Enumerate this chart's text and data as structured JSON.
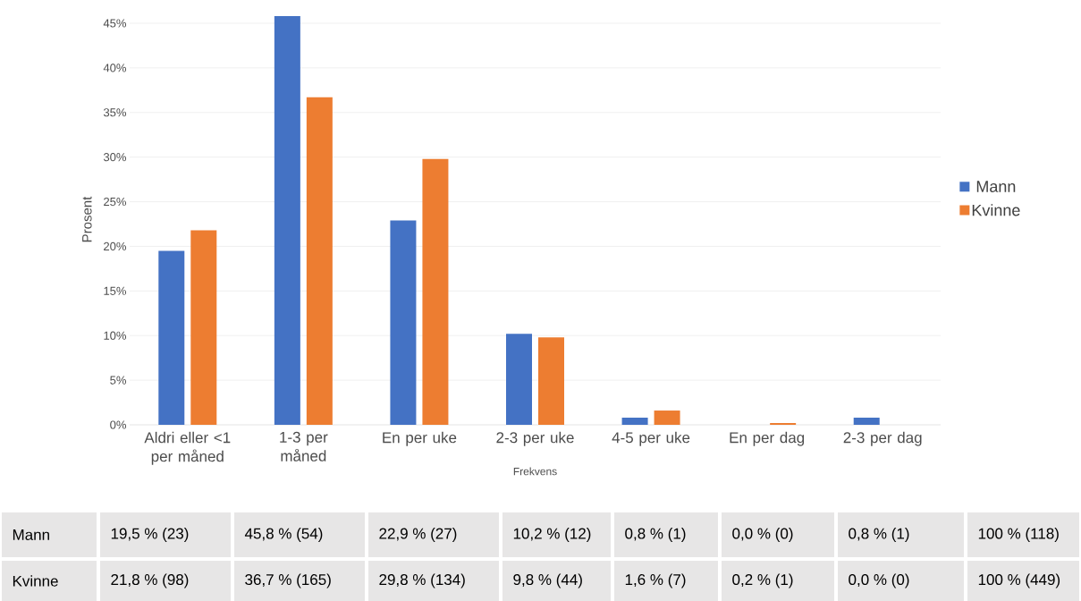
{
  "chart_data": {
    "type": "bar",
    "xlabel": "Frekvens",
    "ylabel": "Prosent",
    "categories": [
      "Aldri eller <1 per måned",
      "1-3 per måned",
      "En per uke",
      "2-3 per uke",
      "4-5 per uke",
      "En per dag",
      "2-3 per dag"
    ],
    "series": [
      {
        "name": "Mann",
        "color": "#4472c4",
        "values": [
          19.5,
          45.8,
          22.9,
          10.2,
          0.8,
          0.0,
          0.8
        ],
        "value_labels": [
          "19,5 % (23)",
          "45,8 % (54)",
          "22,9 % (27)",
          "10,2 % (12)",
          "0,8 % (1)",
          "0,0 % (0)",
          "0,8 % (1)"
        ]
      },
      {
        "name": "Kvinne",
        "color": "#ed7d31",
        "values": [
          21.8,
          36.7,
          29.8,
          9.8,
          1.6,
          0.2,
          0.0
        ],
        "value_labels": [
          "21,8 % (98)",
          "36,7 % (165)",
          "29,8 % (134)",
          "9,8 % (44)",
          "1,6 % (7)",
          "0,2 % (1)",
          "0,0 % (0)"
        ]
      }
    ],
    "ylim": [
      0,
      46
    ],
    "yticks": [
      {
        "value": 0,
        "label": "0%"
      },
      {
        "value": 5,
        "label": "5%"
      },
      {
        "value": 10,
        "label": "10%"
      },
      {
        "value": 15,
        "label": "15%"
      },
      {
        "value": 20,
        "label": "20%"
      },
      {
        "value": 25,
        "label": "25%"
      },
      {
        "value": 30,
        "label": "30%"
      },
      {
        "value": 35,
        "label": "35%"
      },
      {
        "value": 40,
        "label": "40%"
      },
      {
        "value": 45,
        "label": "45%"
      }
    ],
    "grid": "y",
    "legend": "right",
    "annotations": [
      "100 % (118)",
      "100 % (449)"
    ]
  }
}
